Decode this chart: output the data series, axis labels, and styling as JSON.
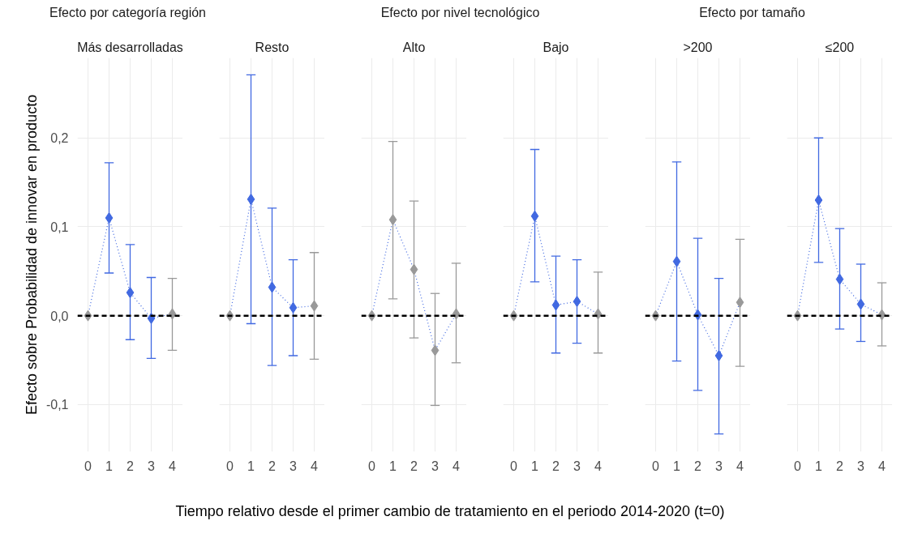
{
  "chart_data": [
    {
      "type": "line",
      "title": "Efecto por categoría región",
      "subtitle": "Más desarrolladas",
      "ylabel": "Efecto sobre Probabilidad de innovar en producto",
      "xlabel": "Tiempo relativo desde el primer cambio de tratamiento en el periodo 2014-2020 (t=0)",
      "x": [
        0,
        1,
        2,
        3,
        4
      ],
      "xlim": [
        -0.5,
        4.5
      ],
      "xticks": [
        0,
        1,
        2,
        3,
        4
      ],
      "ylim": [
        -0.153,
        0.29
      ],
      "yticks": [
        {
          "value": -0.1,
          "label": "-0,1"
        },
        {
          "value": 0,
          "label": "0,0"
        },
        {
          "value": 0.1,
          "label": "0,1"
        },
        {
          "value": 0.2,
          "label": "0,2"
        }
      ],
      "grid": true,
      "ref_lines": [
        {
          "axis": "y",
          "value": 0,
          "color": "#000000",
          "line_style": "dashed"
        }
      ],
      "series": [
        {
          "color": "#4169e1",
          "line_style": "dotted",
          "marker": "diamond",
          "colors": [
            "#999999",
            "#4169e1",
            "#4169e1",
            "#4169e1",
            "#999999"
          ],
          "values": [
            0,
            0.11,
            0.026,
            -0.003,
            0.002
          ],
          "errors": [
            null,
            [
              0.048,
              0.172
            ],
            [
              -0.027,
              0.08
            ],
            [
              -0.048,
              0.043
            ],
            [
              -0.039,
              0.042
            ]
          ]
        }
      ]
    },
    {
      "type": "line",
      "subtitle": "Resto",
      "x": [
        0,
        1,
        2,
        3,
        4
      ],
      "xlim": [
        -0.5,
        4.5
      ],
      "xticks": [
        0,
        1,
        2,
        3,
        4
      ],
      "ylim": [
        -0.153,
        0.29
      ],
      "yticks": [
        -0.1,
        0,
        0.1,
        0.2
      ],
      "tick_labels": "x",
      "grid": true,
      "ref_lines": [
        {
          "axis": "y",
          "value": 0,
          "color": "#000000",
          "line_style": "dashed"
        }
      ],
      "series": [
        {
          "color": "#4169e1",
          "line_style": "dotted",
          "marker": "diamond",
          "colors": [
            "#999999",
            "#4169e1",
            "#4169e1",
            "#4169e1",
            "#999999"
          ],
          "values": [
            0,
            0.131,
            0.032,
            0.009,
            0.011
          ],
          "errors": [
            null,
            [
              -0.009,
              0.271
            ],
            [
              -0.056,
              0.121
            ],
            [
              -0.045,
              0.063
            ],
            [
              -0.049,
              0.071
            ]
          ]
        }
      ]
    },
    {
      "type": "line",
      "title": "Efecto por nivel tecnológico",
      "subtitle": "Alto",
      "x": [
        0,
        1,
        2,
        3,
        4
      ],
      "xlim": [
        -0.5,
        4.5
      ],
      "xticks": [
        0,
        1,
        2,
        3,
        4
      ],
      "ylim": [
        -0.153,
        0.29
      ],
      "yticks": [
        -0.1,
        0,
        0.1,
        0.2
      ],
      "tick_labels": "x",
      "grid": true,
      "ref_lines": [
        {
          "axis": "y",
          "value": 0,
          "color": "#000000",
          "line_style": "dashed"
        }
      ],
      "series": [
        {
          "color": "#4169e1",
          "line_style": "dotted",
          "marker": "diamond",
          "colors": [
            "#999999",
            "#999999",
            "#999999",
            "#999999",
            "#999999"
          ],
          "values": [
            0,
            0.108,
            0.052,
            -0.039,
            0.002
          ],
          "errors": [
            null,
            [
              0.019,
              0.196
            ],
            [
              -0.025,
              0.129
            ],
            [
              -0.101,
              0.025
            ],
            [
              -0.053,
              0.059
            ]
          ]
        }
      ]
    },
    {
      "type": "line",
      "subtitle": "Bajo",
      "x": [
        0,
        1,
        2,
        3,
        4
      ],
      "xlim": [
        -0.5,
        4.5
      ],
      "xticks": [
        0,
        1,
        2,
        3,
        4
      ],
      "ylim": [
        -0.153,
        0.29
      ],
      "yticks": [
        -0.1,
        0,
        0.1,
        0.2
      ],
      "tick_labels": "x",
      "grid": true,
      "ref_lines": [
        {
          "axis": "y",
          "value": 0,
          "color": "#000000",
          "line_style": "dashed"
        }
      ],
      "series": [
        {
          "color": "#4169e1",
          "line_style": "dotted",
          "marker": "diamond",
          "colors": [
            "#999999",
            "#4169e1",
            "#4169e1",
            "#4169e1",
            "#999999"
          ],
          "values": [
            0,
            0.112,
            0.012,
            0.016,
            0.002
          ],
          "errors": [
            null,
            [
              0.038,
              0.187
            ],
            [
              -0.042,
              0.067
            ],
            [
              -0.031,
              0.063
            ],
            [
              -0.042,
              0.049
            ]
          ]
        }
      ]
    },
    {
      "type": "line",
      "title": "Efecto por tamaño",
      "subtitle": ">200",
      "x": [
        0,
        1,
        2,
        3,
        4
      ],
      "xlim": [
        -0.5,
        4.5
      ],
      "xticks": [
        0,
        1,
        2,
        3,
        4
      ],
      "ylim": [
        -0.153,
        0.29
      ],
      "yticks": [
        -0.1,
        0,
        0.1,
        0.2
      ],
      "tick_labels": "x",
      "grid": true,
      "ref_lines": [
        {
          "axis": "y",
          "value": 0,
          "color": "#000000",
          "line_style": "dashed"
        }
      ],
      "series": [
        {
          "color": "#4169e1",
          "line_style": "dotted",
          "marker": "diamond",
          "colors": [
            "#999999",
            "#4169e1",
            "#4169e1",
            "#4169e1",
            "#999999"
          ],
          "values": [
            0,
            0.061,
            0.001,
            -0.045,
            0.015
          ],
          "errors": [
            null,
            [
              -0.051,
              0.173
            ],
            [
              -0.084,
              0.087
            ],
            [
              -0.133,
              0.042
            ],
            [
              -0.057,
              0.086
            ]
          ]
        }
      ]
    },
    {
      "type": "line",
      "subtitle": "≤200",
      "x": [
        0,
        1,
        2,
        3,
        4
      ],
      "xlim": [
        -0.5,
        4.5
      ],
      "xticks": [
        0,
        1,
        2,
        3,
        4
      ],
      "ylim": [
        -0.153,
        0.29
      ],
      "yticks": [
        -0.1,
        0,
        0.1,
        0.2
      ],
      "tick_labels": "x",
      "grid": true,
      "ref_lines": [
        {
          "axis": "y",
          "value": 0,
          "color": "#000000",
          "line_style": "dashed"
        }
      ],
      "series": [
        {
          "color": "#4169e1",
          "line_style": "dotted",
          "marker": "diamond",
          "colors": [
            "#999999",
            "#4169e1",
            "#4169e1",
            "#4169e1",
            "#999999"
          ],
          "values": [
            0,
            0.13,
            0.041,
            0.013,
            0.001
          ],
          "errors": [
            null,
            [
              0.06,
              0.2
            ],
            [
              -0.015,
              0.098
            ],
            [
              -0.029,
              0.058
            ],
            [
              -0.034,
              0.037
            ]
          ]
        }
      ]
    }
  ]
}
